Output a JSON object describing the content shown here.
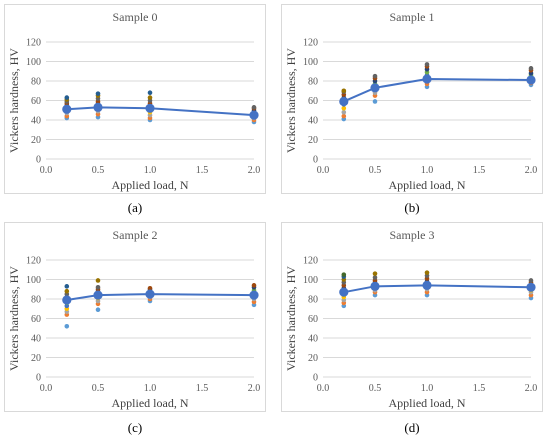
{
  "panels": [
    {
      "label": "(a)",
      "chart_data": {
        "type": "scatter",
        "title": "Sample 0",
        "xlabel": "Applied load, N",
        "ylabel": "Vickers hardness, HV",
        "xlim": [
          0.0,
          2.0
        ],
        "ylim": [
          0,
          120
        ],
        "xticks": [
          "0.0",
          "0.5",
          "1.0",
          "1.5",
          "2.0"
        ],
        "yticks": [
          "0",
          "20",
          "40",
          "60",
          "80",
          "100",
          "120"
        ],
        "grid": true,
        "individual_points": [
          {
            "x": 0.2,
            "y": [
              42,
              44,
              47,
              49,
              51,
              53,
              55,
              57,
              59,
              61,
              63
            ]
          },
          {
            "x": 0.5,
            "y": [
              43,
              46,
              49,
              51,
              53,
              55,
              57,
              59,
              62,
              65,
              67
            ]
          },
          {
            "x": 1.0,
            "y": [
              40,
              42,
              45,
              48,
              50,
              52,
              55,
              57,
              60,
              63,
              68
            ]
          },
          {
            "x": 2.0,
            "y": [
              38,
              40,
              42,
              44,
              46,
              48,
              50,
              52,
              53
            ]
          }
        ],
        "series": [
          {
            "x": [
              0.2,
              0.5,
              1.0,
              2.0
            ],
            "y": [
              51,
              53,
              52,
              45
            ]
          }
        ]
      }
    },
    {
      "label": "(b)",
      "chart_data": {
        "type": "scatter",
        "title": "Sample 1",
        "xlabel": "Applied load, N",
        "ylabel": "Vickers hardness, HV",
        "xlim": [
          0.0,
          2.0
        ],
        "ylim": [
          0,
          120
        ],
        "xticks": [
          "0.0",
          "0.5",
          "1.0",
          "1.5",
          "2.0"
        ],
        "yticks": [
          "0",
          "20",
          "40",
          "60",
          "80",
          "100",
          "120"
        ],
        "grid": true,
        "individual_points": [
          {
            "x": 0.2,
            "y": [
              41,
              44,
              48,
              52,
              56,
              60,
              63,
              66,
              69,
              70
            ]
          },
          {
            "x": 0.5,
            "y": [
              59,
              65,
              68,
              71,
              74,
              77,
              80,
              83,
              85
            ]
          },
          {
            "x": 1.0,
            "y": [
              74,
              77,
              80,
              83,
              86,
              89,
              92,
              95,
              97
            ]
          },
          {
            "x": 2.0,
            "y": [
              76,
              78,
              80,
              82,
              84,
              86,
              88,
              91,
              93
            ]
          }
        ],
        "series": [
          {
            "x": [
              0.2,
              0.5,
              1.0,
              2.0
            ],
            "y": [
              59,
              73,
              82,
              81
            ]
          }
        ]
      }
    },
    {
      "label": "(c)",
      "chart_data": {
        "type": "scatter",
        "title": "Sample 2",
        "xlabel": "Applied load, N",
        "ylabel": "Vickers hardness, HV",
        "xlim": [
          0.0,
          2.0
        ],
        "ylim": [
          0,
          120
        ],
        "xticks": [
          "0.0",
          "0.5",
          "1.0",
          "1.5",
          "2.0"
        ],
        "yticks": [
          "0",
          "20",
          "40",
          "60",
          "80",
          "100",
          "120"
        ],
        "grid": true,
        "individual_points": [
          {
            "x": 0.2,
            "y": [
              52,
              64,
              67,
              70,
              73,
              76,
              79,
              82,
              85,
              88,
              93
            ]
          },
          {
            "x": 0.5,
            "y": [
              69,
              75,
              78,
              81,
              84,
              86,
              88,
              90,
              92,
              99
            ]
          },
          {
            "x": 1.0,
            "y": [
              78,
              80,
              82,
              84,
              86,
              88,
              90,
              91
            ]
          },
          {
            "x": 2.0,
            "y": [
              74,
              77,
              80,
              83,
              86,
              89,
              92,
              94
            ]
          }
        ],
        "series": [
          {
            "x": [
              0.2,
              0.5,
              1.0,
              2.0
            ],
            "y": [
              79,
              84,
              85,
              84
            ]
          }
        ]
      }
    },
    {
      "label": "(d)",
      "chart_data": {
        "type": "scatter",
        "title": "Sample 3",
        "xlabel": "Applied load, N",
        "ylabel": "Vickers hardness, HV",
        "xlim": [
          0.0,
          2.0
        ],
        "ylim": [
          0,
          120
        ],
        "xticks": [
          "0.0",
          "0.5",
          "1.0",
          "1.5",
          "2.0"
        ],
        "yticks": [
          "0",
          "20",
          "40",
          "60",
          "80",
          "100",
          "120"
        ],
        "grid": true,
        "individual_points": [
          {
            "x": 0.2,
            "y": [
              73,
              76,
              79,
              82,
              85,
              88,
              91,
              94,
              97,
              100,
              103,
              105
            ]
          },
          {
            "x": 0.5,
            "y": [
              84,
              87,
              89,
              91,
              93,
              95,
              97,
              99,
              102,
              106
            ]
          },
          {
            "x": 1.0,
            "y": [
              84,
              87,
              90,
              92,
              94,
              96,
              98,
              101,
              104,
              107
            ]
          },
          {
            "x": 2.0,
            "y": [
              81,
              84,
              87,
              89,
              91,
              93,
              95,
              97,
              99
            ]
          }
        ],
        "series": [
          {
            "x": [
              0.2,
              0.5,
              1.0,
              2.0
            ],
            "y": [
              87,
              93,
              94,
              92
            ]
          }
        ]
      }
    }
  ],
  "colors": {
    "line": "#4472c4",
    "marker": "#4472c4",
    "points": [
      "#5b9bd5",
      "#ed7d31",
      "#a5a5a5",
      "#ffc000",
      "#4472c4",
      "#70ad47",
      "#264478",
      "#9e480e",
      "#636363",
      "#997300",
      "#255e91",
      "#43682b"
    ]
  }
}
